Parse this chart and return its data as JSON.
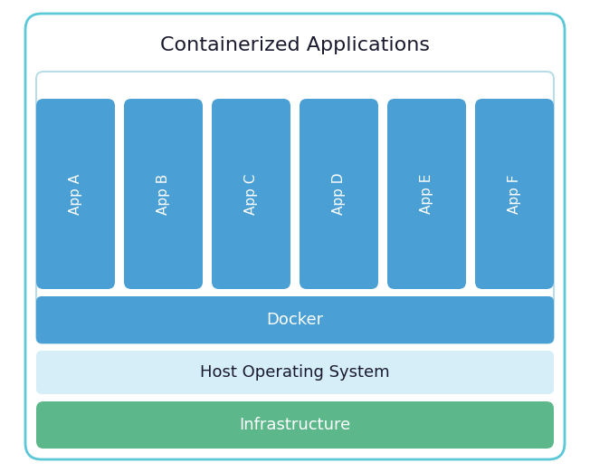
{
  "title": "Containerized Applications",
  "title_fontsize": 16,
  "title_color": "#1a1a2e",
  "background_color": "#ffffff",
  "outer_border_color": "#5bc8d8",
  "outer_border_linewidth": 2.0,
  "container_bg_color": "#ffffff",
  "container_border_color": "#b8dde8",
  "container_border_linewidth": 1.5,
  "app_labels": [
    "App A",
    "App B",
    "App C",
    "App D",
    "App E",
    "App F"
  ],
  "app_color": "#4a9fd4",
  "app_text_color": "#ffffff",
  "app_fontsize": 11,
  "docker_label": "Docker",
  "docker_color": "#4a9fd4",
  "docker_text_color": "#ffffff",
  "docker_fontsize": 13,
  "hos_label": "Host Operating System",
  "hos_color": "#d6eef8",
  "hos_text_color": "#1a1a2e",
  "hos_fontsize": 13,
  "infra_label": "Infrastructure",
  "infra_color": "#5cb88a",
  "infra_text_color": "#ffffff",
  "infra_fontsize": 13,
  "fig_width": 6.52,
  "fig_height": 5.22,
  "dpi": 100
}
